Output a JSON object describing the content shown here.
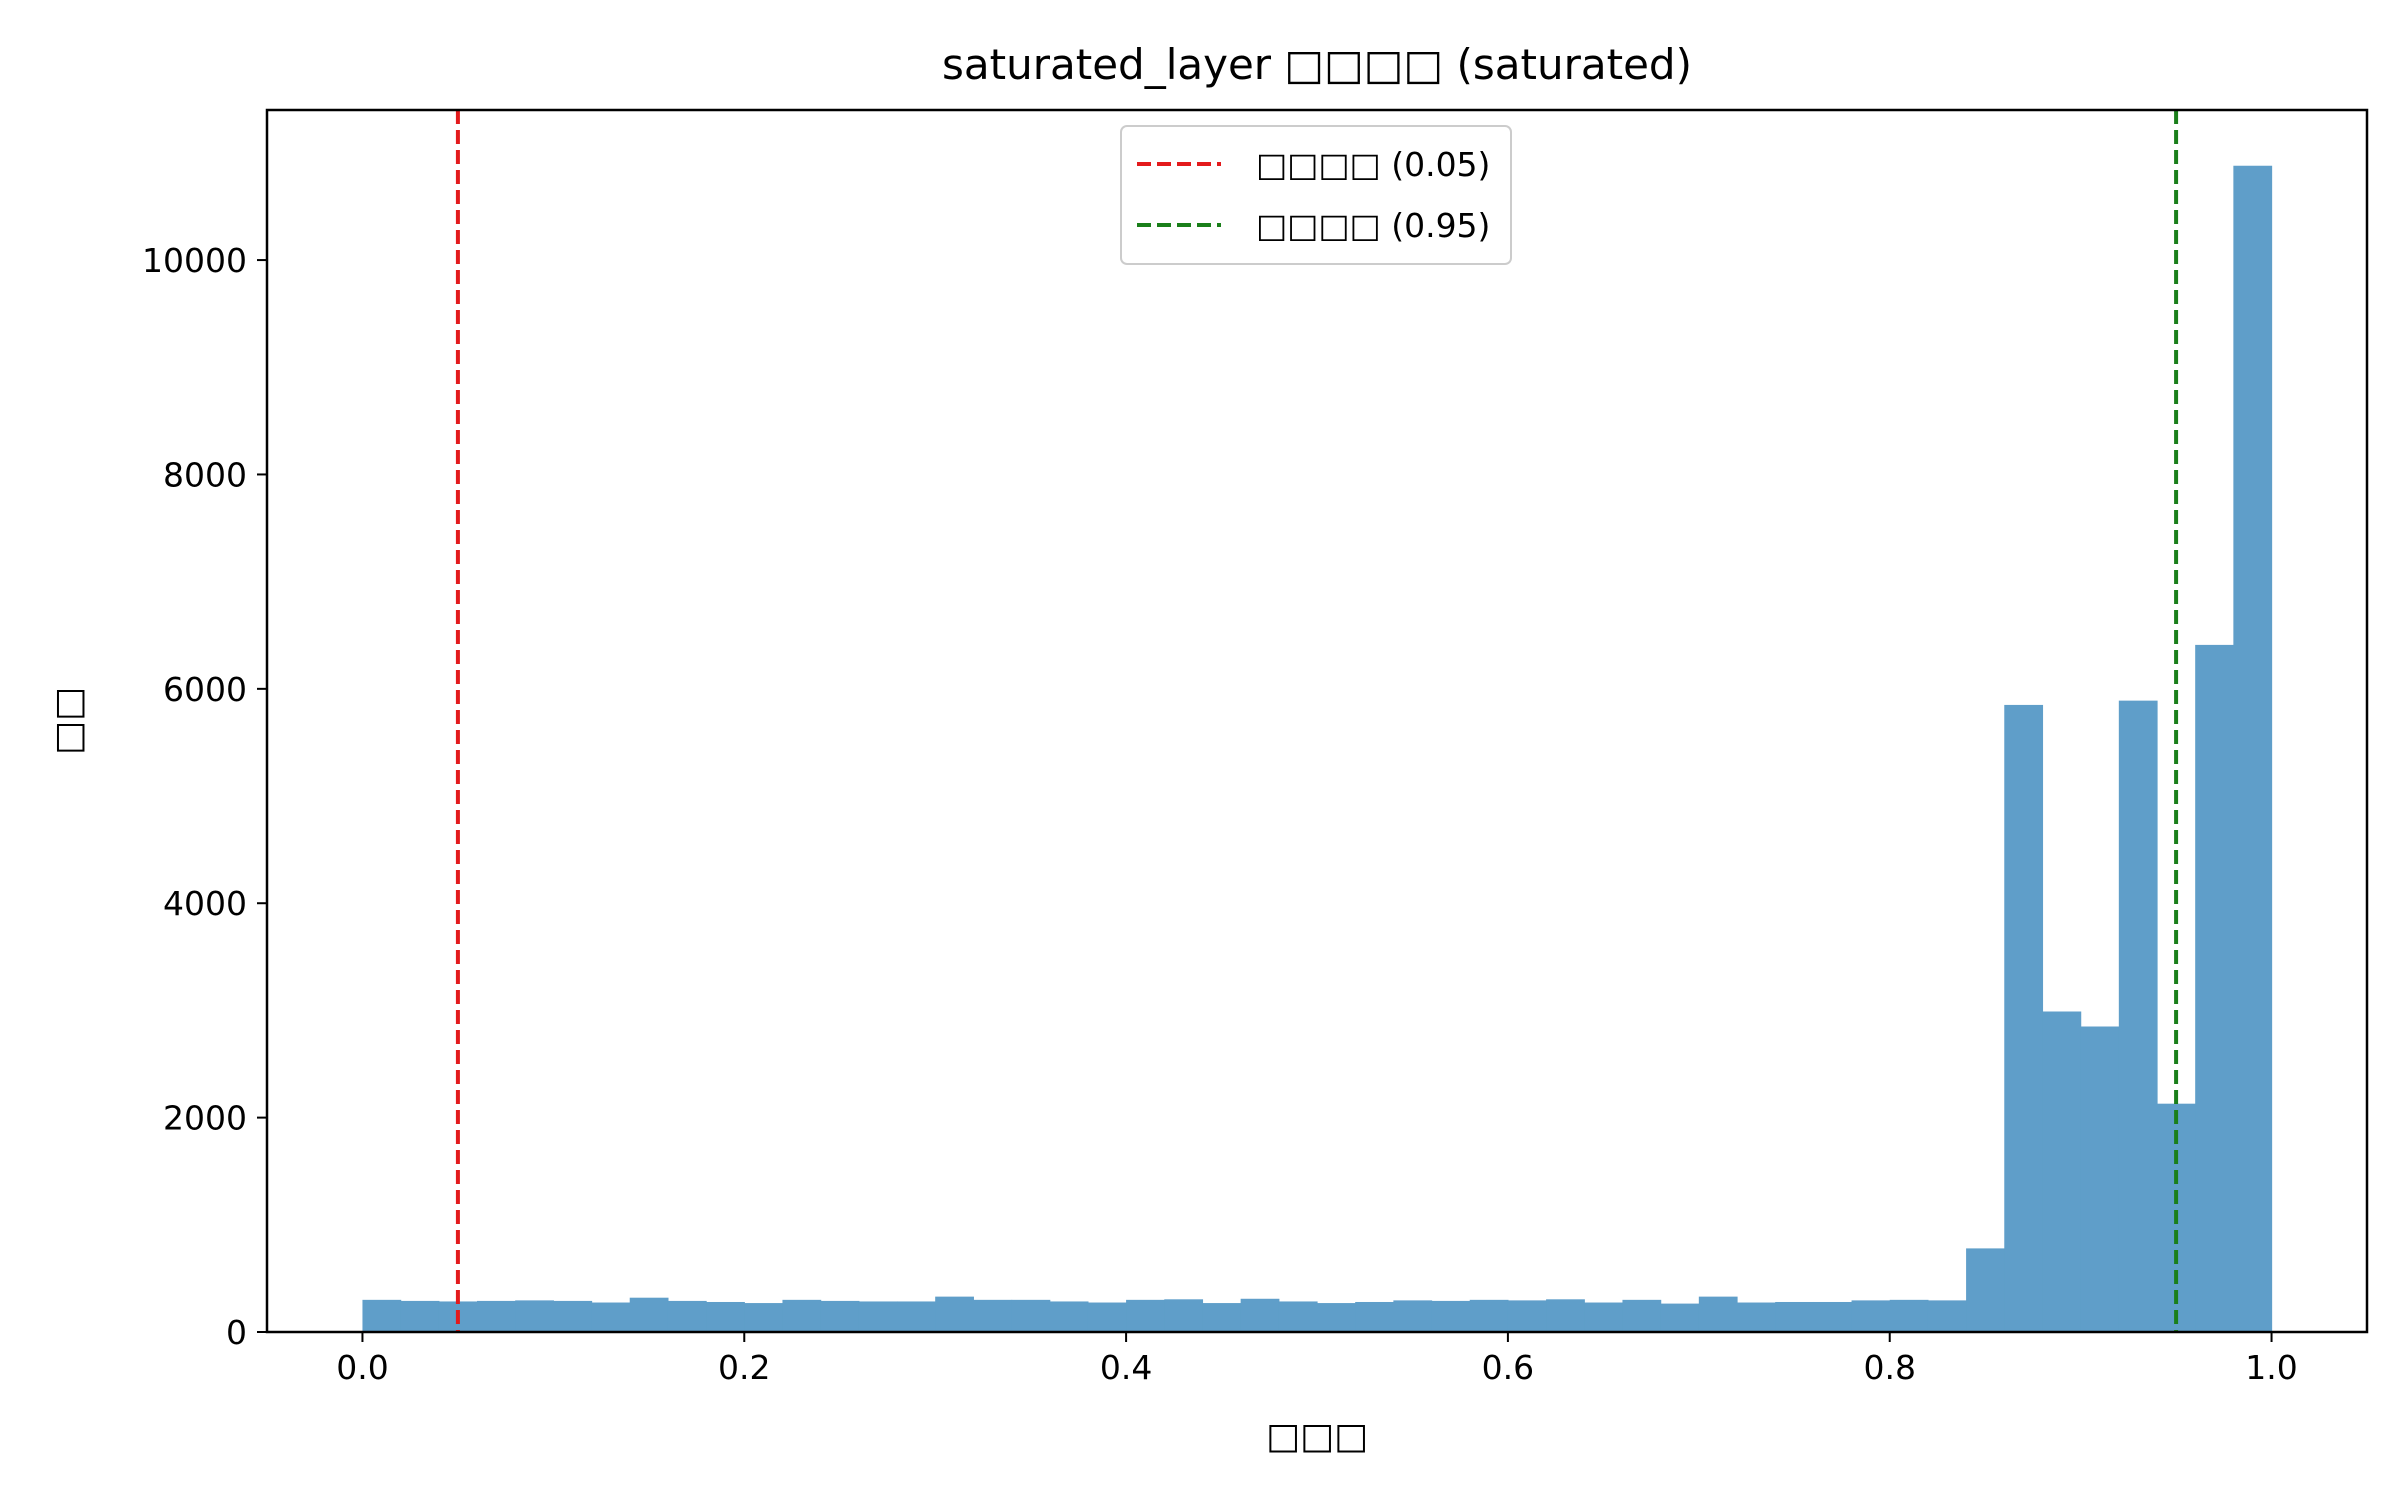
{
  "chart_data": {
    "type": "bar",
    "title": "saturated_layer □□□□ (saturated)",
    "xlabel": "□□□",
    "ylabel": "□□",
    "xlim": [
      -0.05,
      1.05
    ],
    "ylim": [
      0,
      11400
    ],
    "bin_start": 0.0,
    "bin_width": 0.02,
    "values": [
      300,
      290,
      285,
      290,
      295,
      290,
      275,
      320,
      290,
      280,
      270,
      300,
      290,
      285,
      285,
      330,
      300,
      300,
      285,
      275,
      300,
      305,
      270,
      310,
      285,
      270,
      280,
      295,
      290,
      300,
      295,
      305,
      275,
      300,
      265,
      330,
      275,
      280,
      280,
      295,
      300,
      295,
      780,
      5850,
      2990,
      2850,
      5890,
      2130,
      6410,
      10880
    ],
    "bar_color": "#5f9ec9",
    "x_ticks": [
      0.0,
      0.2,
      0.4,
      0.6,
      0.8,
      1.0
    ],
    "x_tick_labels": [
      "0.0",
      "0.2",
      "0.4",
      "0.6",
      "0.8",
      "1.0"
    ],
    "y_ticks": [
      0,
      2000,
      4000,
      6000,
      8000,
      10000
    ],
    "y_tick_labels": [
      "0",
      "2000",
      "4000",
      "6000",
      "8000",
      "10000"
    ],
    "grid": false,
    "legend_position": "top-center",
    "reference_lines": [
      {
        "x": 0.05,
        "label": "□□□□ (0.05)",
        "color": "#e31a1c",
        "style": "dashed"
      },
      {
        "x": 0.95,
        "label": "□□□□ (0.95)",
        "color": "#1a7f1a",
        "style": "dashed"
      }
    ]
  }
}
